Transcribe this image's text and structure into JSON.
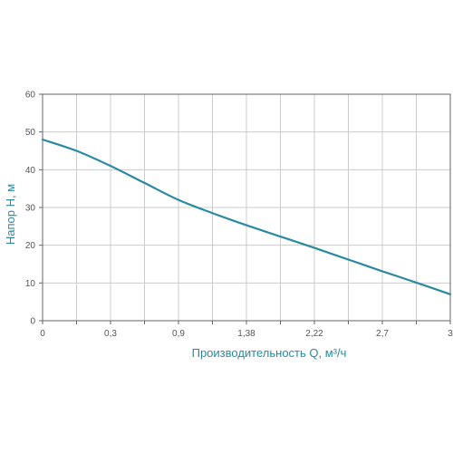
{
  "chart_data": {
    "type": "line",
    "title": "",
    "xlabel": "Производительность Q, м³/ч",
    "ylabel": "Напор H, м",
    "x_tick_labels": [
      "0",
      "0,3",
      "0,9",
      "1,38",
      "2,22",
      "2,7",
      "3"
    ],
    "y_ticks": [
      0,
      10,
      20,
      30,
      40,
      50,
      60
    ],
    "ylim": [
      0,
      60
    ],
    "grid": true,
    "series": [
      {
        "points": [
          {
            "tick": 0,
            "y": 48
          },
          {
            "tick": 0.5,
            "y": 45
          },
          {
            "tick": 1,
            "y": 41
          },
          {
            "tick": 1.5,
            "y": 36.5
          },
          {
            "tick": 2,
            "y": 32
          },
          {
            "tick": 2.5,
            "y": 28.5
          },
          {
            "tick": 3,
            "y": 25.3
          },
          {
            "tick": 3.5,
            "y": 22.3
          },
          {
            "tick": 4,
            "y": 19.3
          },
          {
            "tick": 4.5,
            "y": 16.2
          },
          {
            "tick": 5,
            "y": 13.1
          },
          {
            "tick": 5.5,
            "y": 10.1
          },
          {
            "tick": 6,
            "y": 7
          }
        ]
      }
    ],
    "colors": {
      "line": "#2a8aa0",
      "grid": "#cccccc",
      "axis": "#666666",
      "tick_text": "#555555",
      "title_text": "#2a8aa0"
    }
  }
}
